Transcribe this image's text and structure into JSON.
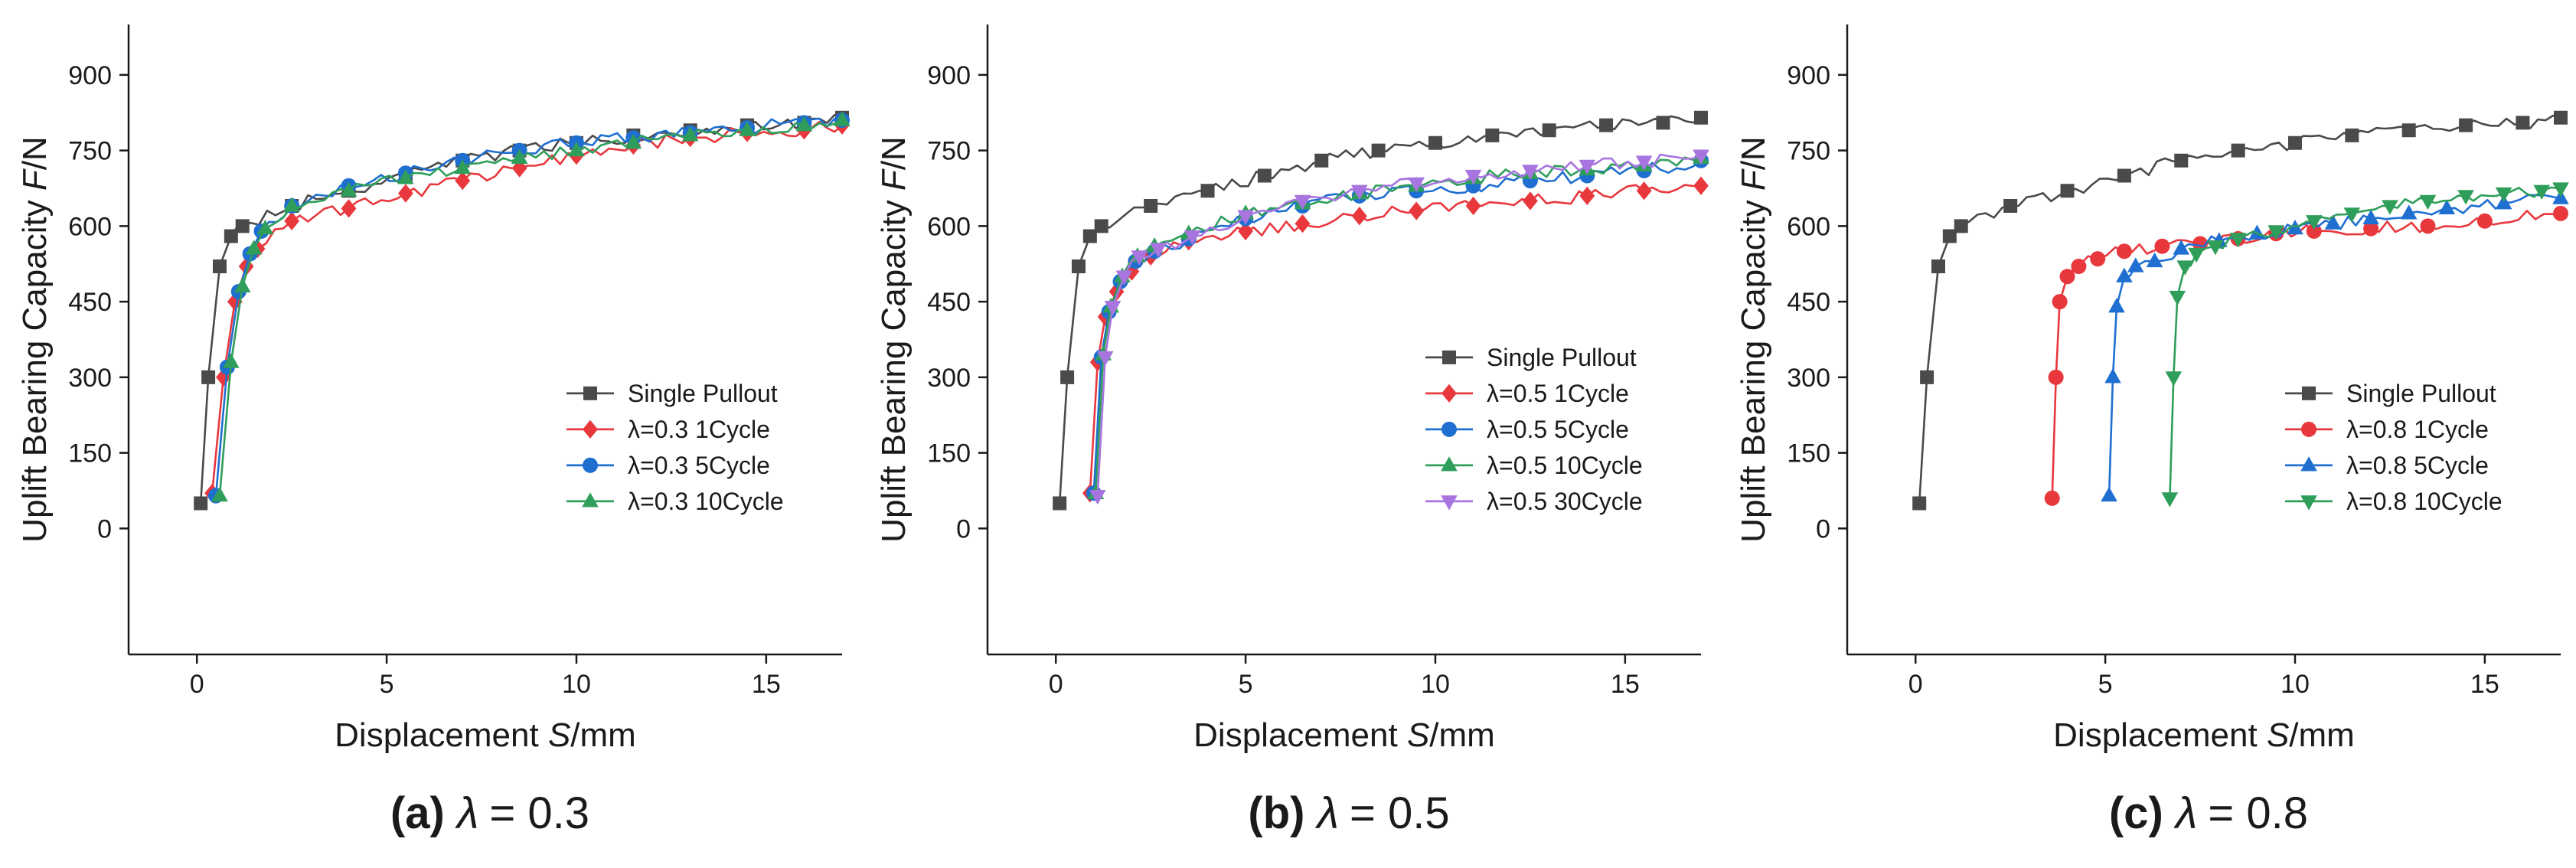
{
  "chart_data": [
    {
      "type": "line",
      "panel": "a",
      "caption_label": "(a)",
      "caption_symbol": "λ",
      "caption_value": "= 0.3",
      "xlabel_prefix": "Displacement ",
      "xlabel_var": "S",
      "xlabel_unit": "/mm",
      "ylabel_prefix": "Uplift  Bearing Capacity ",
      "ylabel_var": "F",
      "ylabel_unit": "/N",
      "xlim": [
        -1.8,
        17
      ],
      "ylim": [
        -250,
        1000
      ],
      "xticks": [
        0,
        5,
        10,
        15
      ],
      "yticks": [
        0,
        150,
        300,
        450,
        600,
        750,
        900
      ],
      "legend_position": "bottom-right",
      "series": [
        {
          "name": "Single Pullout",
          "color": "#4a4a4a",
          "marker": "square",
          "x": [
            0.1,
            0.3,
            0.6,
            0.9,
            1.2,
            2.5,
            4.0,
            5.5,
            7.0,
            8.5,
            10.0,
            11.5,
            13.0,
            14.5,
            16.0,
            17.0
          ],
          "y": [
            50,
            300,
            520,
            580,
            600,
            640,
            670,
            700,
            730,
            750,
            765,
            780,
            790,
            800,
            805,
            815
          ]
        },
        {
          "name": "λ=0.3 1Cycle",
          "color": "#e8383d",
          "marker": "diamond",
          "x": [
            0.4,
            0.7,
            1.0,
            1.3,
            1.6,
            2.5,
            4.0,
            5.5,
            7.0,
            8.5,
            10.0,
            11.5,
            13.0,
            14.5,
            16.0,
            17.0
          ],
          "y": [
            70,
            300,
            450,
            520,
            555,
            610,
            635,
            665,
            690,
            715,
            740,
            760,
            775,
            785,
            790,
            800
          ]
        },
        {
          "name": "λ=0.3 5Cycle",
          "color": "#1f6fd1",
          "marker": "circle",
          "x": [
            0.5,
            0.8,
            1.1,
            1.4,
            1.7,
            2.5,
            4.0,
            5.5,
            7.0,
            8.5,
            10.0,
            11.5,
            13.0,
            14.5,
            16.0,
            17.0
          ],
          "y": [
            65,
            320,
            470,
            545,
            590,
            640,
            680,
            705,
            730,
            750,
            765,
            775,
            785,
            795,
            805,
            810
          ]
        },
        {
          "name": "λ=0.3 10Cycle",
          "color": "#2f9e5b",
          "marker": "triangle-up",
          "x": [
            0.6,
            0.9,
            1.2,
            1.5,
            1.8,
            2.5,
            4.0,
            5.5,
            7.0,
            8.5,
            10.0,
            11.5,
            13.0,
            14.5,
            16.0,
            17.0
          ],
          "y": [
            65,
            330,
            480,
            555,
            595,
            640,
            670,
            695,
            715,
            735,
            750,
            765,
            780,
            790,
            800,
            810
          ]
        }
      ]
    },
    {
      "type": "line",
      "panel": "b",
      "caption_label": "(b)",
      "caption_symbol": "λ",
      "caption_value": "= 0.5",
      "xlabel_prefix": "Displacement ",
      "xlabel_var": "S",
      "xlabel_unit": "/mm",
      "ylabel_prefix": "Uplift  Bearing Capacity ",
      "ylabel_var": "F",
      "ylabel_unit": "/N",
      "xlim": [
        -1.8,
        17
      ],
      "ylim": [
        -250,
        1000
      ],
      "xticks": [
        0,
        5,
        10,
        15
      ],
      "yticks": [
        0,
        150,
        300,
        450,
        600,
        750,
        900
      ],
      "legend_position": "bottom-right",
      "series": [
        {
          "name": "Single Pullout",
          "color": "#4a4a4a",
          "marker": "square",
          "x": [
            0.1,
            0.3,
            0.6,
            0.9,
            1.2,
            2.5,
            4.0,
            5.5,
            7.0,
            8.5,
            10.0,
            11.5,
            13.0,
            14.5,
            16.0,
            17.0
          ],
          "y": [
            50,
            300,
            520,
            580,
            600,
            640,
            670,
            700,
            730,
            750,
            765,
            780,
            790,
            800,
            805,
            815
          ]
        },
        {
          "name": "λ=0.5 1Cycle",
          "color": "#e8383d",
          "marker": "diamond",
          "x": [
            0.9,
            1.1,
            1.3,
            1.6,
            2.0,
            2.5,
            3.5,
            5.0,
            6.5,
            8.0,
            9.5,
            11.0,
            12.5,
            14.0,
            15.5,
            17.0
          ],
          "y": [
            70,
            330,
            420,
            470,
            510,
            540,
            570,
            590,
            605,
            620,
            630,
            640,
            650,
            660,
            670,
            680
          ]
        },
        {
          "name": "λ=0.5 5Cycle",
          "color": "#1f6fd1",
          "marker": "circle",
          "x": [
            1.0,
            1.2,
            1.4,
            1.7,
            2.1,
            2.6,
            3.5,
            5.0,
            6.5,
            8.0,
            9.5,
            11.0,
            12.5,
            14.0,
            15.5,
            17.0
          ],
          "y": [
            70,
            340,
            430,
            490,
            530,
            550,
            575,
            615,
            640,
            660,
            670,
            680,
            690,
            700,
            710,
            730
          ]
        },
        {
          "name": "λ=0.5 10Cycle",
          "color": "#2f9e5b",
          "marker": "triangle-up",
          "x": [
            1.05,
            1.25,
            1.45,
            1.75,
            2.15,
            2.6,
            3.5,
            5.0,
            6.5,
            8.0,
            9.5,
            11.0,
            12.5,
            14.0,
            15.5,
            17.0
          ],
          "y": [
            70,
            345,
            440,
            500,
            540,
            560,
            585,
            625,
            645,
            665,
            680,
            695,
            705,
            712,
            720,
            735
          ]
        },
        {
          "name": "λ=0.5 30Cycle",
          "color": "#a875e0",
          "marker": "triangle-down",
          "x": [
            1.1,
            1.3,
            1.5,
            1.8,
            2.2,
            2.7,
            3.6,
            5.0,
            6.5,
            8.0,
            9.5,
            11.0,
            12.5,
            14.0,
            15.5,
            17.0
          ],
          "y": [
            65,
            340,
            440,
            500,
            540,
            555,
            580,
            620,
            650,
            670,
            685,
            700,
            710,
            720,
            728,
            740
          ]
        }
      ]
    },
    {
      "type": "line",
      "panel": "c",
      "caption_label": "(c)",
      "caption_symbol": "λ",
      "caption_value": "= 0.8",
      "xlabel_prefix": "Displacement ",
      "xlabel_var": "S",
      "xlabel_unit": "/mm",
      "ylabel_prefix": "Uplift  Bearing Capacity ",
      "ylabel_var": "F",
      "ylabel_unit": "/N",
      "xlim": [
        -1.8,
        17
      ],
      "ylim": [
        -250,
        1000
      ],
      "xticks": [
        0,
        5,
        10,
        15
      ],
      "yticks": [
        0,
        150,
        300,
        450,
        600,
        750,
        900
      ],
      "legend_position": "bottom-right",
      "series": [
        {
          "name": "Single Pullout",
          "color": "#4a4a4a",
          "marker": "square",
          "x": [
            0.1,
            0.3,
            0.6,
            0.9,
            1.2,
            2.5,
            4.0,
            5.5,
            7.0,
            8.5,
            10.0,
            11.5,
            13.0,
            14.5,
            16.0,
            17.0
          ],
          "y": [
            50,
            300,
            520,
            580,
            600,
            640,
            670,
            700,
            730,
            750,
            765,
            780,
            790,
            800,
            805,
            815
          ]
        },
        {
          "name": "λ=0.8 1Cycle",
          "color": "#e8383d",
          "marker": "circle",
          "x": [
            3.6,
            3.7,
            3.8,
            4.0,
            4.3,
            4.8,
            5.5,
            6.5,
            7.5,
            8.5,
            9.5,
            10.5,
            12.0,
            13.5,
            15.0,
            17.0
          ],
          "y": [
            60,
            300,
            450,
            500,
            520,
            535,
            550,
            560,
            565,
            575,
            585,
            590,
            595,
            600,
            610,
            625
          ]
        },
        {
          "name": "λ=0.8 5Cycle",
          "color": "#1f6fd1",
          "marker": "triangle-up",
          "x": [
            5.1,
            5.2,
            5.3,
            5.5,
            5.8,
            6.3,
            7.0,
            8.0,
            9.0,
            10.0,
            11.0,
            12.0,
            13.0,
            14.0,
            15.5,
            17.0
          ],
          "y": [
            65,
            300,
            440,
            500,
            520,
            530,
            555,
            570,
            585,
            595,
            605,
            615,
            625,
            635,
            645,
            655
          ]
        },
        {
          "name": "λ=0.8 10Cycle",
          "color": "#2f9e5b",
          "marker": "triangle-down",
          "x": [
            6.7,
            6.8,
            6.9,
            7.1,
            7.4,
            7.9,
            8.5,
            9.5,
            10.5,
            11.5,
            12.5,
            13.5,
            14.5,
            15.5,
            16.5,
            17.0
          ],
          "y": [
            60,
            300,
            460,
            520,
            545,
            560,
            575,
            590,
            610,
            625,
            640,
            650,
            660,
            665,
            670,
            675
          ]
        }
      ]
    }
  ]
}
